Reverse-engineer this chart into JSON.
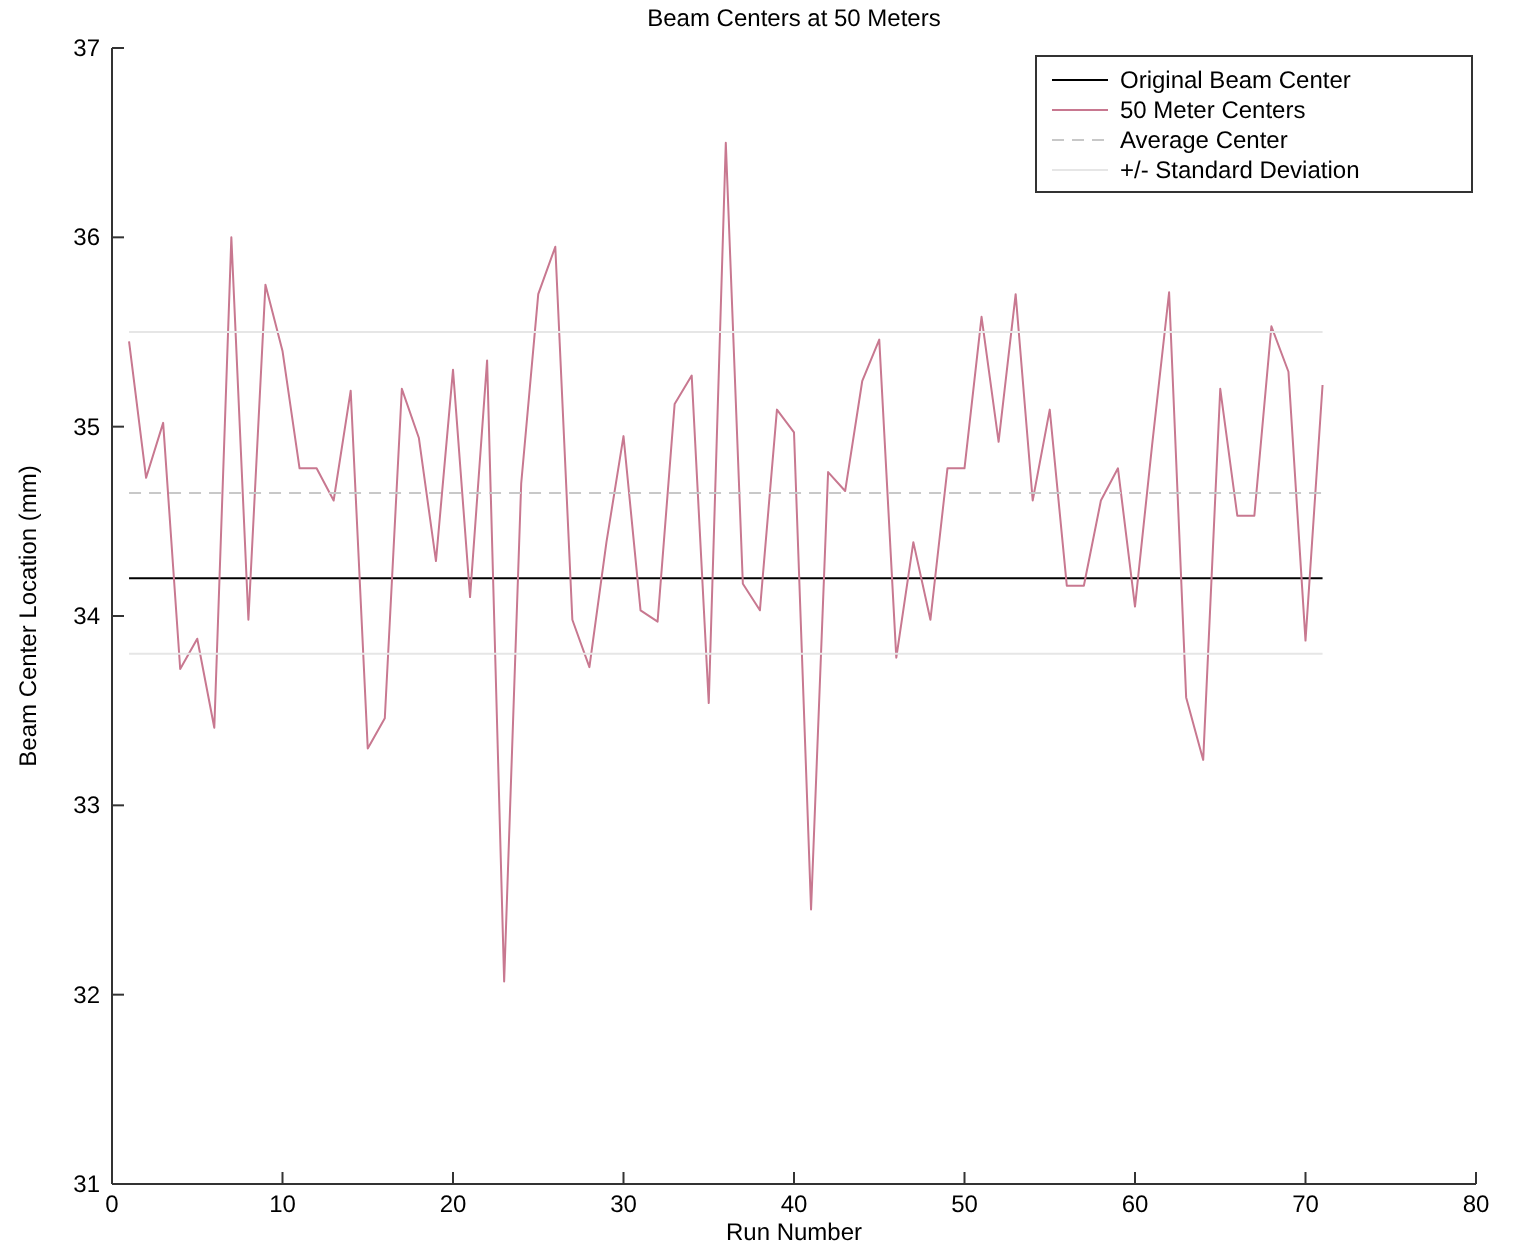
{
  "chart_data": {
    "type": "line",
    "title": "Beam Centers at 50 Meters",
    "xlabel": "Run Number",
    "ylabel": "Beam Center Location (mm)",
    "xlim": [
      0,
      80
    ],
    "xticks": [
      0,
      10,
      20,
      30,
      40,
      50,
      60,
      70,
      80
    ],
    "ylim": [
      31,
      37
    ],
    "yticks": [
      31,
      32,
      33,
      34,
      35,
      36,
      37
    ],
    "grid": false,
    "legend": "top right",
    "marker": "none",
    "series": [
      {
        "name": "Original Beam Center",
        "color": "#000000",
        "x": [
          1,
          71
        ],
        "values": [
          34.2,
          34.2
        ]
      },
      {
        "name": "50 Meter Centers",
        "color": "#c87890",
        "x": [
          1,
          2,
          3,
          4,
          5,
          6,
          7,
          8,
          9,
          10,
          11,
          12,
          13,
          14,
          15,
          16,
          17,
          18,
          19,
          20,
          21,
          22,
          23,
          24,
          25,
          26,
          27,
          28,
          29,
          30,
          31,
          32,
          33,
          34,
          35,
          36,
          37,
          38,
          39,
          40,
          41,
          42,
          43,
          44,
          45,
          46,
          47,
          48,
          49,
          50,
          51,
          52,
          53,
          54,
          55,
          56,
          57,
          58,
          59,
          60,
          61,
          62,
          63,
          64,
          65,
          66,
          67,
          68,
          69,
          70,
          71
        ],
        "values": [
          35.45,
          34.73,
          35.02,
          33.72,
          33.88,
          33.41,
          36.0,
          33.98,
          35.75,
          35.4,
          34.78,
          34.78,
          34.61,
          35.19,
          33.3,
          33.46,
          35.2,
          34.94,
          34.29,
          35.3,
          34.1,
          35.35,
          32.07,
          34.7,
          35.7,
          35.95,
          33.98,
          33.73,
          34.39,
          34.95,
          34.03,
          33.97,
          35.12,
          35.27,
          33.54,
          36.5,
          34.17,
          34.03,
          35.09,
          34.97,
          32.45,
          34.76,
          34.66,
          35.24,
          35.46,
          33.78,
          34.39,
          33.98,
          34.78,
          34.78,
          35.58,
          34.92,
          35.7,
          34.61,
          35.09,
          34.16,
          34.16,
          34.61,
          34.78,
          34.05,
          34.9,
          35.71,
          33.57,
          33.24,
          35.2,
          34.53,
          34.53,
          35.53,
          35.29,
          33.87,
          35.22
        ]
      },
      {
        "name": "Average Center",
        "color": "#c8c8c8",
        "line_style": "dashed",
        "x": [
          1,
          71
        ],
        "values": [
          34.65,
          34.65
        ]
      },
      {
        "name": "+/- Standard Deviation",
        "color": "#e6e6e6",
        "x": [
          1,
          71
        ],
        "values": [
          35.5,
          35.5
        ]
      },
      {
        "color": "#e6e6e6",
        "x": [
          1,
          71
        ],
        "values": [
          33.8,
          33.8
        ]
      }
    ]
  }
}
